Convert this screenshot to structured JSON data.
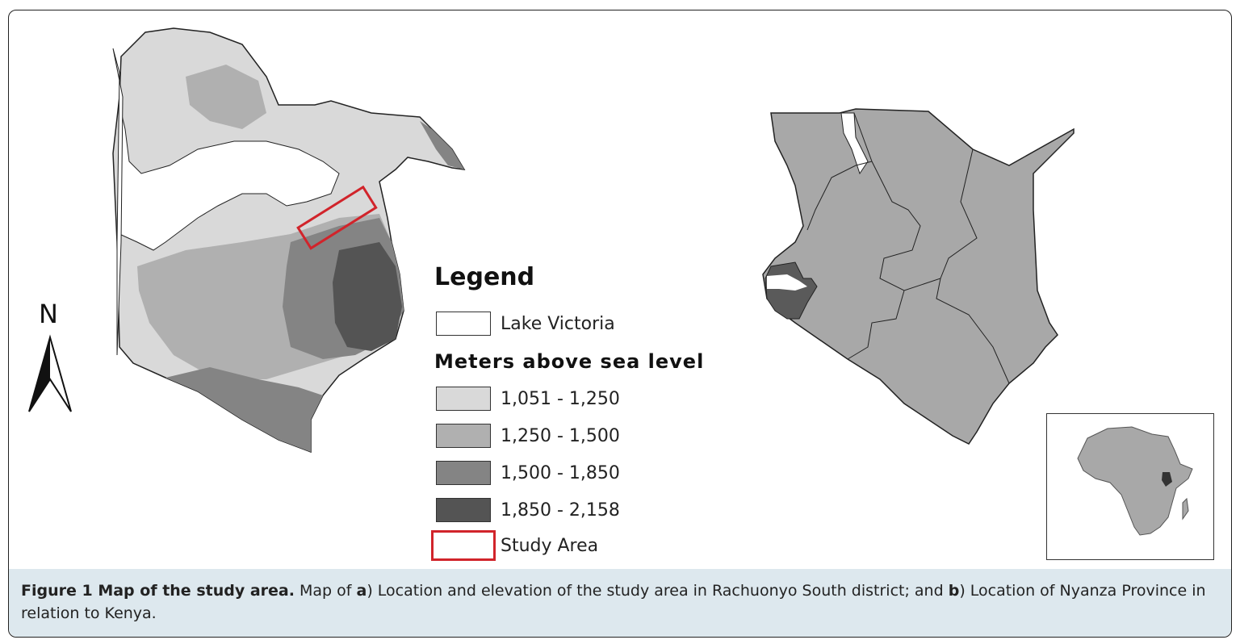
{
  "figure": {
    "caption_label": "Figure 1 Map of the study area.",
    "caption_text_1": " Map of ",
    "caption_a": "a",
    "caption_text_2": ") Location and elevation of the study area in Rachuonyo South district; and ",
    "caption_b": "b",
    "caption_text_3": ") Location of Nyanza Province in relation to Kenya."
  },
  "north_arrow": {
    "label": "N"
  },
  "legend": {
    "title": "Legend",
    "lake": {
      "label": "Lake Victoria",
      "color": "#ffffff"
    },
    "elevation_title": "Meters above sea level",
    "classes": [
      {
        "label": "1,051 - 1,250",
        "color": "#d9d9d9"
      },
      {
        "label": "1,250 - 1,500",
        "color": "#b0b0b0"
      },
      {
        "label": "1,500 - 1,850",
        "color": "#848484"
      },
      {
        "label": "1,850 - 2,158",
        "color": "#545454"
      }
    ],
    "study_area": {
      "label": "Study Area",
      "color": "#d1242b"
    }
  },
  "colors": {
    "kenya_fill": "#a8a8a8",
    "nyanza_fill": "#5a5a5a",
    "africa_fill": "#a8a8a8",
    "caption_bg": "#dde8ee"
  }
}
